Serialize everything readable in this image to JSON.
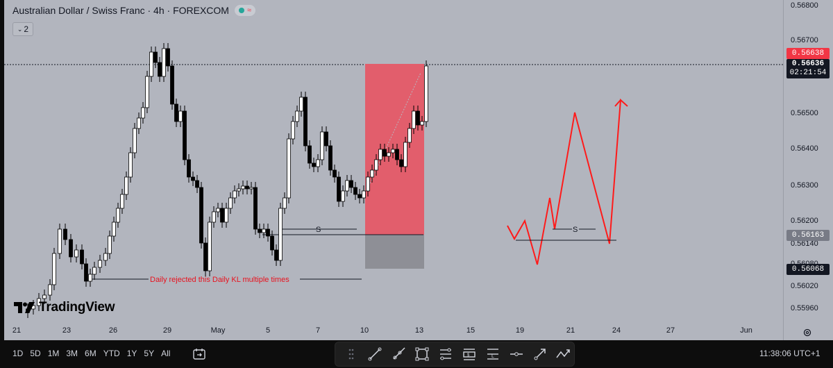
{
  "header": {
    "title": "Australian Dollar / Swiss Franc · 4h · FOREXCOM",
    "indicator_count": "2"
  },
  "logo": {
    "text": "TradingView"
  },
  "price_axis": {
    "labels": [
      "0.56800",
      "0.56700",
      "0.56500",
      "0.56400",
      "0.56300",
      "0.56200",
      "0.56140",
      "0.56080",
      "0.56020",
      "0.55960"
    ],
    "tags": {
      "current_red": "0.56638",
      "last_price": "0.56636",
      "countdown": "02:21:54",
      "level_mid": "0.56163",
      "level_low": "0.56068"
    }
  },
  "time_axis": {
    "labels": [
      "21",
      "23",
      "26",
      "29",
      "May",
      "5",
      "7",
      "10",
      "13",
      "15",
      "19",
      "21",
      "24",
      "27",
      "Jun"
    ]
  },
  "annotations": {
    "s_label_left": "S",
    "s_label_right": "S",
    "daily_note": "Daily rejected this Daily KL multiple times"
  },
  "bottom_bar": {
    "timeframes": [
      "1D",
      "5D",
      "1M",
      "3M",
      "6M",
      "YTD",
      "1Y",
      "5Y",
      "All"
    ],
    "clock": "11:38:06 UTC+1"
  },
  "toolbar": {
    "icons": [
      "drag-handle-icon",
      "trend-line-icon",
      "ray-icon",
      "rectangle-icon",
      "fib-retracement-icon",
      "long-short-icon",
      "level-icon",
      "horizontal-line-icon",
      "arrow-icon",
      "path-icon"
    ]
  },
  "colors": {
    "chart_bg": "#b2b5be",
    "supply_zone": "#e25e6c",
    "demand_zone": "#8e8f96",
    "projection": "#ff1a1a",
    "note_text": "#e8121e"
  }
}
